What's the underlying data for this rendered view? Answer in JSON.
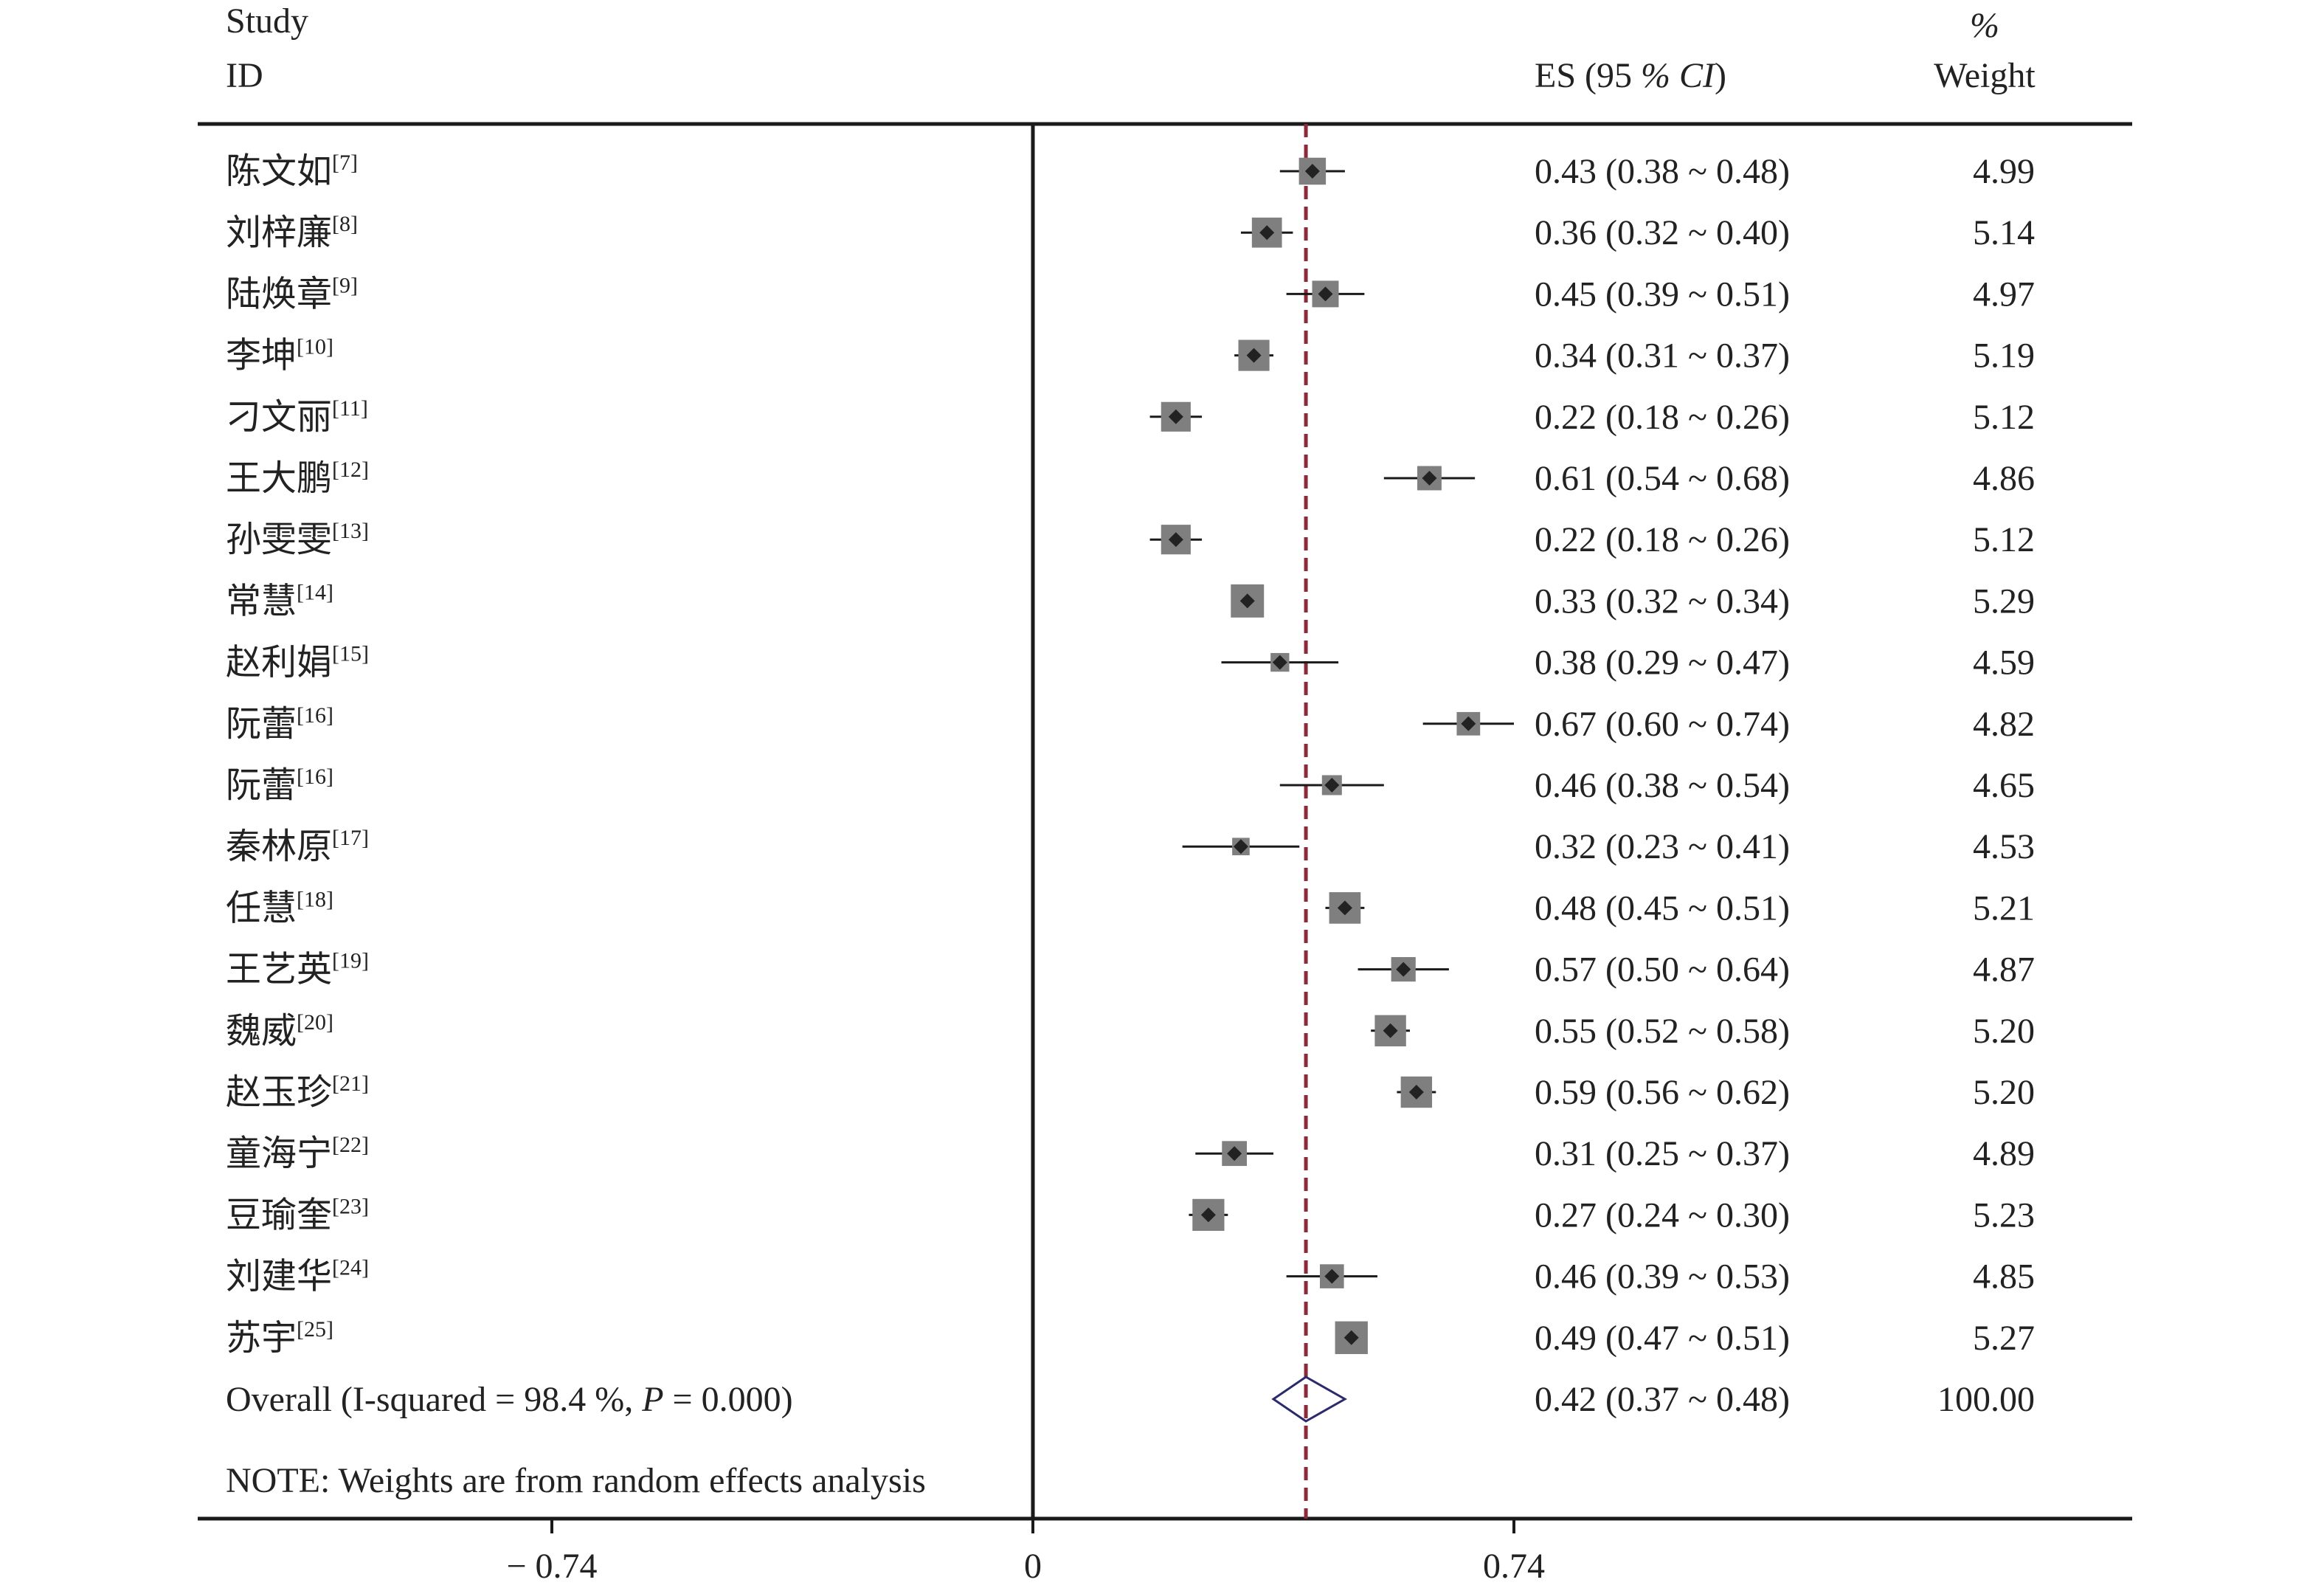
{
  "chart_data": {
    "type": "forest",
    "header": {
      "study_line1": "Study",
      "study_line2": "ID",
      "es_label": "ES (95 % CI)",
      "weight_line1": "%",
      "weight_line2": "Weight"
    },
    "x_axis": {
      "min": -1.26,
      "max": 1.66,
      "ticks": [
        {
          "value": -0.74,
          "label": "− 0.74"
        },
        {
          "value": 0,
          "label": "0"
        },
        {
          "value": 0.74,
          "label": "0.74"
        }
      ]
    },
    "pooled_estimate": 0.42,
    "studies": [
      {
        "name": "陈文如",
        "ref": "[7]",
        "es": 0.43,
        "lo": 0.38,
        "hi": 0.48,
        "es_text": "0.43 (0.38 ~ 0.48)",
        "weight": 4.99,
        "weight_text": "4.99"
      },
      {
        "name": "刘梓廉",
        "ref": "[8]",
        "es": 0.36,
        "lo": 0.32,
        "hi": 0.4,
        "es_text": "0.36 (0.32 ~ 0.40)",
        "weight": 5.14,
        "weight_text": "5.14"
      },
      {
        "name": "陆焕章",
        "ref": "[9]",
        "es": 0.45,
        "lo": 0.39,
        "hi": 0.51,
        "es_text": "0.45 (0.39 ~ 0.51)",
        "weight": 4.97,
        "weight_text": "4.97"
      },
      {
        "name": "李坤",
        "ref": "[10]",
        "es": 0.34,
        "lo": 0.31,
        "hi": 0.37,
        "es_text": "0.34 (0.31 ~ 0.37)",
        "weight": 5.19,
        "weight_text": "5.19"
      },
      {
        "name": "刁文丽",
        "ref": "[11]",
        "es": 0.22,
        "lo": 0.18,
        "hi": 0.26,
        "es_text": "0.22 (0.18 ~ 0.26)",
        "weight": 5.12,
        "weight_text": "5.12"
      },
      {
        "name": "王大鹏",
        "ref": "[12]",
        "es": 0.61,
        "lo": 0.54,
        "hi": 0.68,
        "es_text": "0.61 (0.54 ~ 0.68)",
        "weight": 4.86,
        "weight_text": "4.86"
      },
      {
        "name": "孙雯雯",
        "ref": "[13]",
        "es": 0.22,
        "lo": 0.18,
        "hi": 0.26,
        "es_text": "0.22 (0.18 ~ 0.26)",
        "weight": 5.12,
        "weight_text": "5.12"
      },
      {
        "name": "常慧",
        "ref": "[14]",
        "es": 0.33,
        "lo": 0.32,
        "hi": 0.34,
        "es_text": "0.33 (0.32 ~ 0.34)",
        "weight": 5.29,
        "weight_text": "5.29"
      },
      {
        "name": "赵利娟",
        "ref": "[15]",
        "es": 0.38,
        "lo": 0.29,
        "hi": 0.47,
        "es_text": "0.38 (0.29 ~ 0.47)",
        "weight": 4.59,
        "weight_text": "4.59"
      },
      {
        "name": "阮蕾",
        "ref": "[16]",
        "es": 0.67,
        "lo": 0.6,
        "hi": 0.74,
        "es_text": "0.67 (0.60 ~ 0.74)",
        "weight": 4.82,
        "weight_text": "4.82"
      },
      {
        "name": "阮蕾",
        "ref": "[16]",
        "es": 0.46,
        "lo": 0.38,
        "hi": 0.54,
        "es_text": "0.46 (0.38 ~ 0.54)",
        "weight": 4.65,
        "weight_text": "4.65"
      },
      {
        "name": "秦林原",
        "ref": "[17]",
        "es": 0.32,
        "lo": 0.23,
        "hi": 0.41,
        "es_text": "0.32 (0.23 ~ 0.41)",
        "weight": 4.53,
        "weight_text": "4.53"
      },
      {
        "name": "任慧",
        "ref": "[18]",
        "es": 0.48,
        "lo": 0.45,
        "hi": 0.51,
        "es_text": "0.48 (0.45 ~ 0.51)",
        "weight": 5.21,
        "weight_text": "5.21"
      },
      {
        "name": "王艺英",
        "ref": "[19]",
        "es": 0.57,
        "lo": 0.5,
        "hi": 0.64,
        "es_text": "0.57 (0.50 ~ 0.64)",
        "weight": 4.87,
        "weight_text": "4.87"
      },
      {
        "name": "魏威",
        "ref": "[20]",
        "es": 0.55,
        "lo": 0.52,
        "hi": 0.58,
        "es_text": "0.55 (0.52 ~ 0.58)",
        "weight": 5.2,
        "weight_text": "5.20"
      },
      {
        "name": "赵玉珍",
        "ref": "[21]",
        "es": 0.59,
        "lo": 0.56,
        "hi": 0.62,
        "es_text": "0.59 (0.56 ~ 0.62)",
        "weight": 5.2,
        "weight_text": "5.20"
      },
      {
        "name": "童海宁",
        "ref": "[22]",
        "es": 0.31,
        "lo": 0.25,
        "hi": 0.37,
        "es_text": "0.31 (0.25 ~ 0.37)",
        "weight": 4.89,
        "weight_text": "4.89"
      },
      {
        "name": "豆瑜奎",
        "ref": "[23]",
        "es": 0.27,
        "lo": 0.24,
        "hi": 0.3,
        "es_text": "0.27 (0.24 ~ 0.30)",
        "weight": 5.23,
        "weight_text": "5.23"
      },
      {
        "name": "刘建华",
        "ref": "[24]",
        "es": 0.46,
        "lo": 0.39,
        "hi": 0.53,
        "es_text": "0.46 (0.39 ~ 0.53)",
        "weight": 4.85,
        "weight_text": "4.85"
      },
      {
        "name": "苏宇",
        "ref": "[25]",
        "es": 0.49,
        "lo": 0.47,
        "hi": 0.51,
        "es_text": "0.49 (0.47 ~ 0.51)",
        "weight": 5.27,
        "weight_text": "5.27"
      }
    ],
    "overall": {
      "label": "Overall  (I-squared = 98.4 %, P = 0.000)",
      "es": 0.42,
      "lo": 0.37,
      "hi": 0.48,
      "es_text": "0.42 (0.37 ~ 0.48)",
      "weight_text": "100.00"
    },
    "note": "NOTE: Weights are from random effects analysis",
    "colors": {
      "line": "#1a1a1a",
      "box": "#7f7f7f",
      "point": "#222222",
      "pooled_line": "#8b2a3a",
      "diamond": "#2b2b6b"
    }
  }
}
